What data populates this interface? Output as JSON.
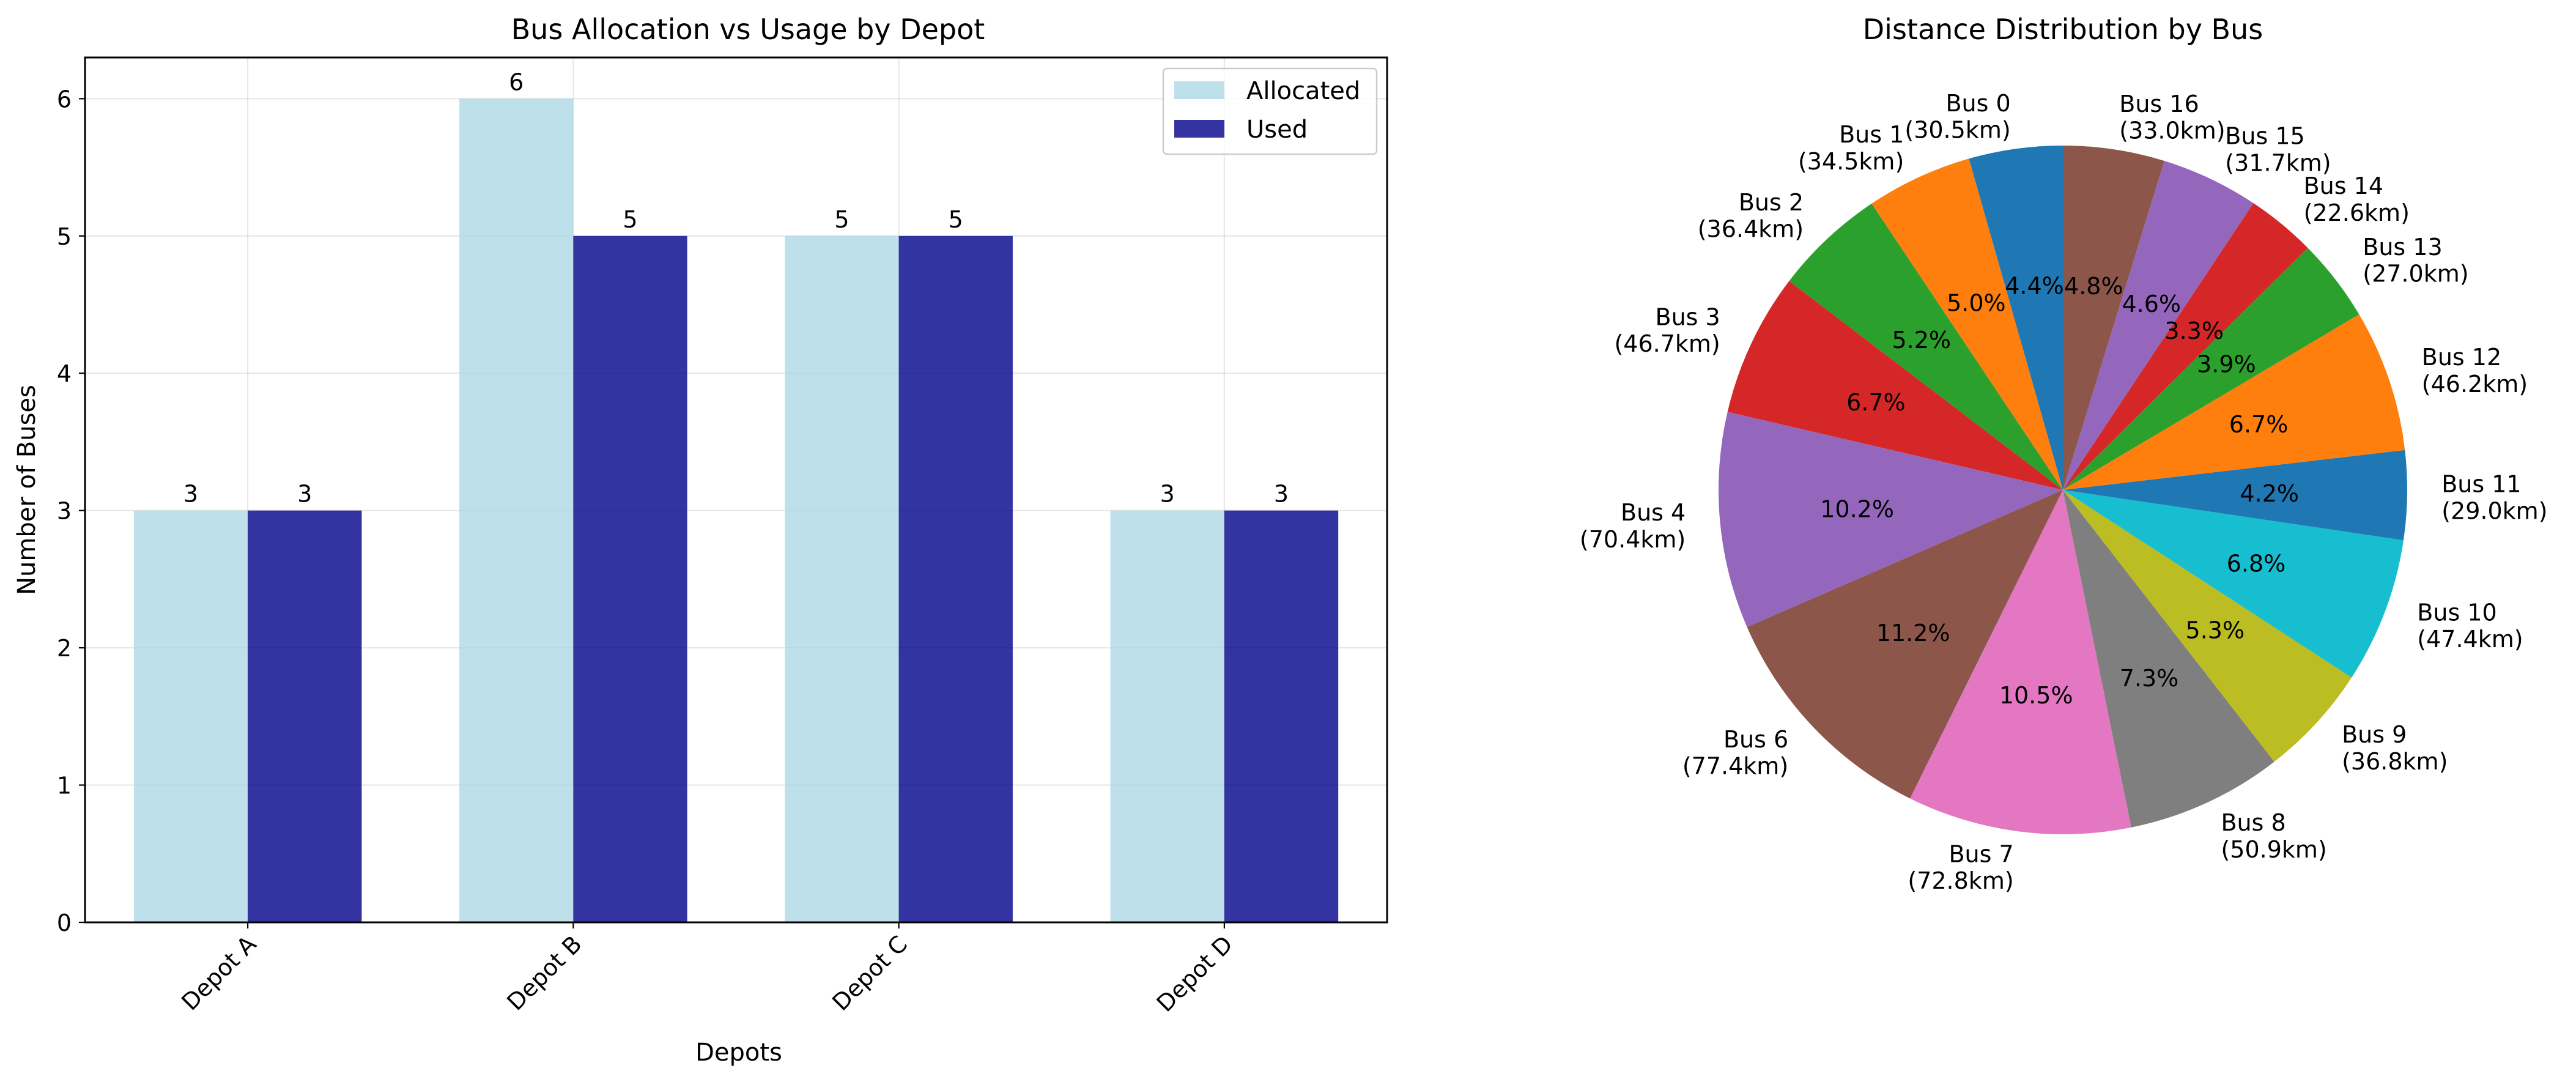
{
  "chart_data": [
    {
      "type": "bar",
      "title": "Bus Allocation vs Usage by Depot",
      "xlabel": "Depots",
      "ylabel": "Number of Buses",
      "categories": [
        "Depot A",
        "Depot B",
        "Depot C",
        "Depot D"
      ],
      "series": [
        {
          "name": "Allocated",
          "values": [
            3,
            6,
            5,
            3
          ],
          "color": "#add8e6"
        },
        {
          "name": "Used",
          "values": [
            3,
            5,
            5,
            3
          ],
          "color": "#00008b"
        }
      ],
      "ylim": [
        0,
        6.3
      ],
      "yticks": [
        0,
        1,
        2,
        3,
        4,
        5,
        6
      ],
      "grid": true,
      "legend": "top-right",
      "data_labels": true
    },
    {
      "type": "pie",
      "title": "Distance Distribution by Bus",
      "start_angle_deg": 90,
      "direction": "counterclockwise",
      "slices": [
        {
          "label": "Bus 0",
          "distance": "(30.5km)",
          "value": 30.5,
          "pct": "4.4%",
          "color": "#1f77b4"
        },
        {
          "label": "Bus 1",
          "distance": "(34.5km)",
          "value": 34.5,
          "pct": "5.0%",
          "color": "#ff7f0e"
        },
        {
          "label": "Bus 2",
          "distance": "(36.4km)",
          "value": 36.4,
          "pct": "5.2%",
          "color": "#2ca02c"
        },
        {
          "label": "Bus 3",
          "distance": "(46.7km)",
          "value": 46.7,
          "pct": "6.7%",
          "color": "#d62728"
        },
        {
          "label": "Bus 4",
          "distance": "(70.4km)",
          "value": 70.4,
          "pct": "10.2%",
          "color": "#9467bd"
        },
        {
          "label": "Bus 6",
          "distance": "(77.4km)",
          "value": 77.4,
          "pct": "11.2%",
          "color": "#8c564b"
        },
        {
          "label": "Bus 7",
          "distance": "(72.8km)",
          "value": 72.8,
          "pct": "10.5%",
          "color": "#e377c2"
        },
        {
          "label": "Bus 8",
          "distance": "(50.9km)",
          "value": 50.9,
          "pct": "7.3%",
          "color": "#7f7f7f"
        },
        {
          "label": "Bus 9",
          "distance": "(36.8km)",
          "value": 36.8,
          "pct": "5.3%",
          "color": "#bcbd22"
        },
        {
          "label": "Bus 10",
          "distance": "(47.4km)",
          "value": 47.4,
          "pct": "6.8%",
          "color": "#17becf"
        },
        {
          "label": "Bus 11",
          "distance": "(29.0km)",
          "value": 29.0,
          "pct": "4.2%",
          "color": "#1f77b4"
        },
        {
          "label": "Bus 12",
          "distance": "(46.2km)",
          "value": 46.2,
          "pct": "6.7%",
          "color": "#ff7f0e"
        },
        {
          "label": "Bus 13",
          "distance": "(27.0km)",
          "value": 27.0,
          "pct": "3.9%",
          "color": "#2ca02c"
        },
        {
          "label": "Bus 14",
          "distance": "(22.6km)",
          "value": 22.6,
          "pct": "3.3%",
          "color": "#d62728"
        },
        {
          "label": "Bus 15",
          "distance": "(31.7km)",
          "value": 31.7,
          "pct": "4.6%",
          "color": "#9467bd"
        },
        {
          "label": "Bus 16",
          "distance": "(33.0km)",
          "value": 33.0,
          "pct": "4.8%",
          "color": "#8c564b"
        }
      ]
    }
  ]
}
